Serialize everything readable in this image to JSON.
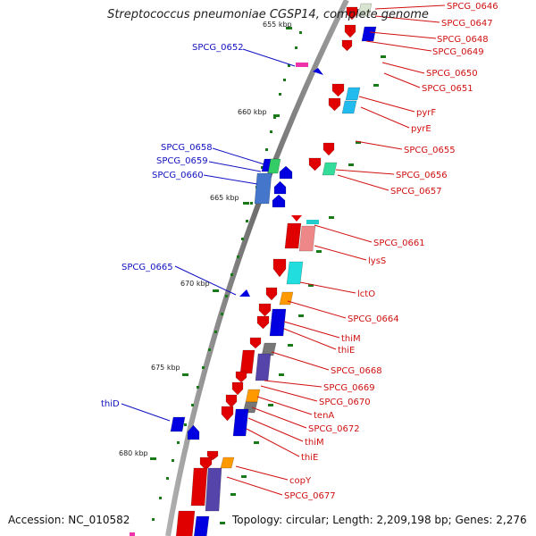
{
  "title": "Streptococcus pneumoniae CGSP14, complete genome",
  "footer": {
    "accession": "Accession: NC_010582",
    "topology": "Topology: circular; Length: 2,209,198 bp; Genes: 2,276"
  },
  "colors": {
    "backbone": "#808080",
    "forward": "#e00000",
    "reverse": "#0000e0",
    "tick": "#1a7a1a",
    "label_forward": "#d01010",
    "label_reverse": "#1010c0"
  },
  "scale_labels": [
    {
      "text": "655 kbp"
    },
    {
      "text": "660 kbp"
    },
    {
      "text": "665 kbp"
    },
    {
      "text": "670 kbp"
    },
    {
      "text": "675 kbp"
    },
    {
      "text": "680 kbp"
    }
  ],
  "reverse_labels": [
    {
      "text": "SPCG_0652"
    },
    {
      "text": "SPCG_0658"
    },
    {
      "text": "SPCG_0659"
    },
    {
      "text": "SPCG_0660"
    },
    {
      "text": "SPCG_0665"
    },
    {
      "text": "thiD"
    }
  ],
  "forward_labels": [
    {
      "text": "SPCG_0646"
    },
    {
      "text": "SPCG_0647"
    },
    {
      "text": "SPCG_0648"
    },
    {
      "text": "SPCG_0649"
    },
    {
      "text": "SPCG_0650"
    },
    {
      "text": "SPCG_0651"
    },
    {
      "text": "pyrF"
    },
    {
      "text": "pyrE"
    },
    {
      "text": "SPCG_0655"
    },
    {
      "text": "SPCG_0656"
    },
    {
      "text": "SPCG_0657"
    },
    {
      "text": "SPCG_0661"
    },
    {
      "text": "lysS"
    },
    {
      "text": "lctO"
    },
    {
      "text": "SPCG_0664"
    },
    {
      "text": "thiM"
    },
    {
      "text": "thiE"
    },
    {
      "text": "SPCG_0668"
    },
    {
      "text": "SPCG_0669"
    },
    {
      "text": "SPCG_0670"
    },
    {
      "text": "tenA"
    },
    {
      "text": "SPCG_0672"
    },
    {
      "text": "thiM"
    },
    {
      "text": "thiE"
    },
    {
      "text": "copY"
    },
    {
      "text": "SPCG_0677"
    }
  ]
}
